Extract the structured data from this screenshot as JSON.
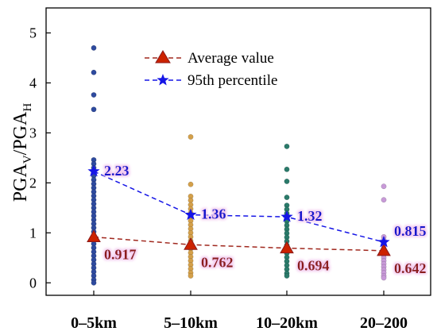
{
  "chart_data": {
    "type": "scatter",
    "ylabel": {
      "base": "PGA",
      "sub_v": "V",
      "sep": "/",
      "base2": "PGA",
      "sub_h": "H"
    },
    "categories": [
      "0–5km",
      "5–10km",
      "10–20km",
      "20–200"
    ],
    "ylim": [
      -0.25,
      5.5
    ],
    "yticks": [
      "0",
      "1",
      "2",
      "3",
      "4",
      "5"
    ],
    "grid": false,
    "legend_position": "top-center",
    "series": [
      {
        "name": "Average value",
        "marker": "triangle",
        "line_style": "dashed",
        "values": [
          0.917,
          0.762,
          0.694,
          0.642
        ],
        "labels": [
          "0.917",
          "0.762",
          "0.694",
          "0.642"
        ],
        "color": "#cc2200",
        "line_color": "#a0281e"
      },
      {
        "name": "95th percentile",
        "marker": "star",
        "line_style": "dashed",
        "values": [
          2.23,
          1.36,
          1.32,
          0.815
        ],
        "labels": [
          "2.23",
          "1.36",
          "1.32",
          "0.815"
        ],
        "color": "#1515e6",
        "line_color": "#1515e6"
      }
    ],
    "observations": [
      {
        "category": "0–5km",
        "color": "#2e4a9e",
        "values": [
          4.7,
          4.21,
          3.76,
          3.47,
          2.46,
          2.38,
          2.3,
          2.22,
          2.14,
          2.06,
          1.98,
          1.9,
          1.82,
          1.74,
          1.66,
          1.58,
          1.5,
          1.42,
          1.34,
          1.26,
          1.18,
          1.1,
          1.02,
          0.94,
          0.86,
          0.78,
          0.7,
          0.62,
          0.54,
          0.46,
          0.38,
          0.3,
          0.22,
          0.14,
          0.06,
          0.0
        ]
      },
      {
        "category": "5–10km",
        "color": "#d4a04a",
        "values": [
          2.92,
          1.97,
          1.73,
          1.65,
          1.56,
          1.48,
          1.4,
          1.32,
          1.24,
          1.16,
          1.08,
          1.0,
          0.92,
          0.84,
          0.76,
          0.68,
          0.6,
          0.52,
          0.44,
          0.36,
          0.28,
          0.2,
          0.14
        ]
      },
      {
        "category": "10–20km",
        "color": "#2a7a6a",
        "values": [
          2.73,
          2.27,
          2.03,
          1.71,
          1.55,
          1.47,
          1.39,
          1.31,
          1.23,
          1.15,
          1.07,
          0.99,
          0.91,
          0.83,
          0.75,
          0.67,
          0.59,
          0.51,
          0.43,
          0.35,
          0.27,
          0.19,
          0.14
        ]
      },
      {
        "category": "20–200",
        "color": "#c89ad8",
        "values": [
          1.93,
          1.66,
          0.92,
          0.86,
          0.8,
          0.74,
          0.68,
          0.62,
          0.56,
          0.5,
          0.44,
          0.38,
          0.32,
          0.26,
          0.2,
          0.14,
          0.1
        ]
      }
    ]
  }
}
